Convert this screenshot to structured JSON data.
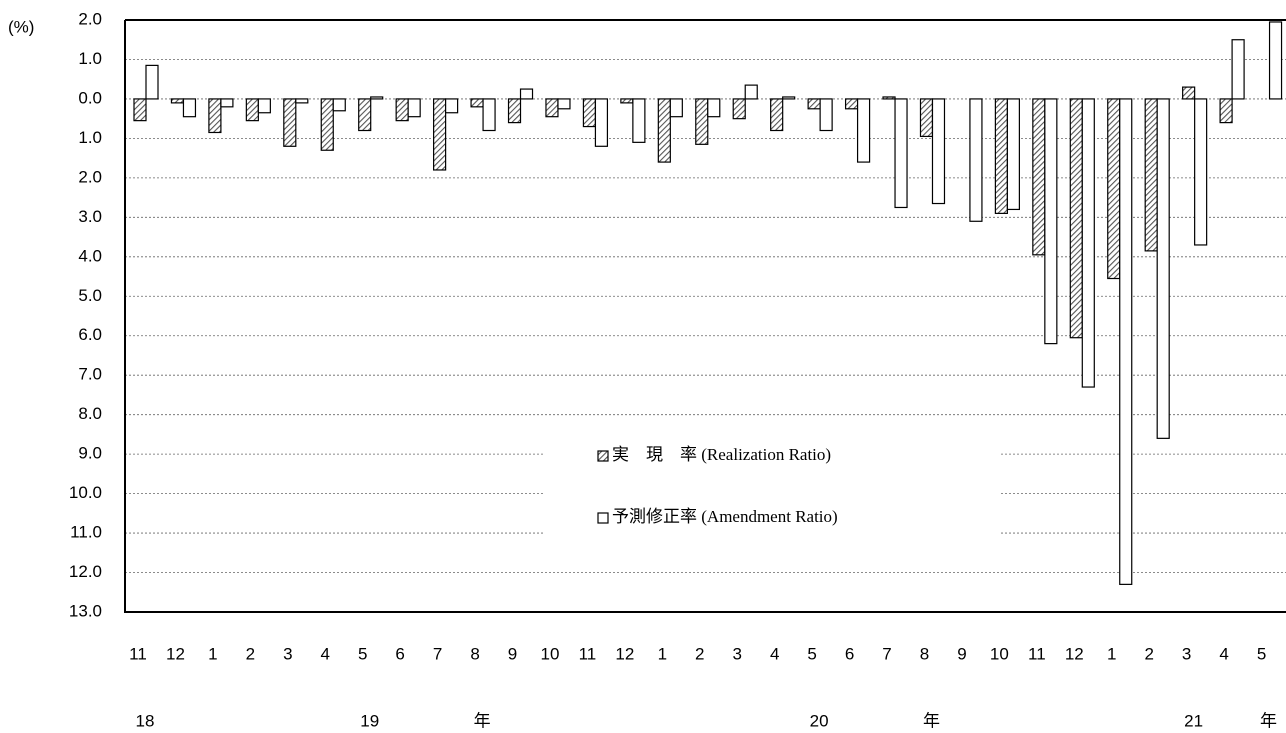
{
  "chart_data": {
    "type": "bar",
    "y_label": "(%)",
    "categories": [
      "11",
      "12",
      "1",
      "2",
      "3",
      "4",
      "5",
      "6",
      "7",
      "8",
      "9",
      "10",
      "11",
      "12",
      "1",
      "2",
      "3",
      "4",
      "5",
      "6",
      "7",
      "8",
      "9",
      "10",
      "11",
      "12",
      "1",
      "2",
      "3",
      "4",
      "5"
    ],
    "year_row": [
      "18",
      null,
      null,
      null,
      null,
      null,
      "19",
      null,
      null,
      "年",
      null,
      null,
      null,
      null,
      null,
      null,
      null,
      null,
      "20",
      null,
      null,
      "年",
      null,
      null,
      null,
      null,
      null,
      null,
      "21",
      null,
      "年"
    ],
    "series": [
      {
        "name": "実　現　率 (Realization Ratio)",
        "color": "#555555",
        "hatch": true,
        "values": [
          -0.55,
          -0.1,
          -0.85,
          -0.55,
          -1.2,
          -1.3,
          -0.8,
          -0.55,
          -1.8,
          -0.2,
          -0.6,
          -0.45,
          -0.7,
          -0.1,
          -1.6,
          -1.15,
          -0.5,
          -0.8,
          -0.25,
          -0.25,
          0.05,
          -0.95,
          null,
          -2.9,
          -3.95,
          -6.05,
          -4.55,
          -3.85,
          0.3,
          -0.6,
          null
        ]
      },
      {
        "name": "予測修正率 (Amendment Ratio)",
        "color": "#ffffff",
        "hatch": false,
        "values": [
          0.85,
          -0.45,
          -0.2,
          -0.35,
          -0.1,
          -0.3,
          0.05,
          -0.45,
          -0.35,
          -0.8,
          0.25,
          -0.25,
          -1.2,
          -1.1,
          -0.45,
          -0.45,
          0.35,
          0.05,
          -0.8,
          -1.6,
          -2.75,
          -2.65,
          -3.1,
          -2.8,
          -6.2,
          -7.3,
          -12.3,
          -8.6,
          -3.7,
          1.5,
          1.95
        ]
      }
    ],
    "ylim": [
      -13,
      2
    ],
    "yticks": [
      {
        "value": 2,
        "label": "2.0"
      },
      {
        "value": 1,
        "label": "1.0"
      },
      {
        "value": 0,
        "label": "0.0"
      },
      {
        "value": -1,
        "label": "1.0"
      },
      {
        "value": -2,
        "label": "2.0"
      },
      {
        "value": -3,
        "label": "3.0"
      },
      {
        "value": -4,
        "label": "4.0"
      },
      {
        "value": -5,
        "label": "5.0"
      },
      {
        "value": -6,
        "label": "6.0"
      },
      {
        "value": -7,
        "label": "7.0"
      },
      {
        "value": -8,
        "label": "8.0"
      },
      {
        "value": -9,
        "label": "9.0"
      },
      {
        "value": -10,
        "label": "10.0"
      },
      {
        "value": -11,
        "label": "11.0"
      },
      {
        "value": -12,
        "label": "12.0"
      },
      {
        "value": -13,
        "label": "13.0"
      }
    ],
    "grid": true
  }
}
